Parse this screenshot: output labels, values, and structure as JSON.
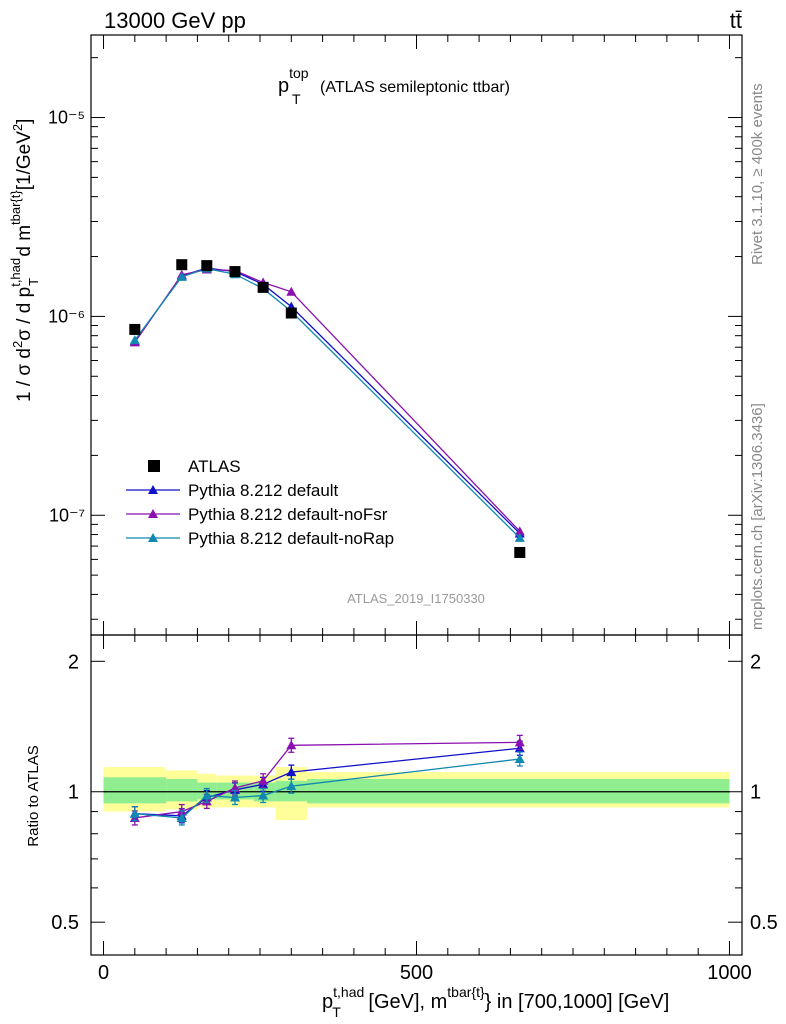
{
  "header": {
    "energy_label": "13000 GeV pp",
    "process_label": "tt̄",
    "title_main": "p",
    "title_sup": "top",
    "title_sub": "T",
    "title_rest": "(ATLAS semileptonic ttbar)",
    "analysis_id": "ATLAS_2019_I1750330"
  },
  "side": {
    "rivet": "Rivet 3.1.10, ≥ 400k events",
    "mcplots": "mcplots.cern.ch [arXiv:1306.3436]"
  },
  "axes": {
    "main_ylabel": "1 / σ d²σ / d p_T^{t,had} d m^{tbar{t}} [1/GeV²]",
    "ratio_ylabel": "Ratio to ATLAS",
    "xlabel": "p_T^{t,had} [GeV], m^{tbar{t}} in [700,1000] [GeV]",
    "main_ticks": [
      "10⁻⁵",
      "10⁻⁶",
      "10⁻⁷"
    ],
    "ratio_ticks_left": [
      "2",
      "1",
      "0.5"
    ],
    "ratio_ticks_right": [
      "2",
      "1",
      "0.5"
    ],
    "x_ticks": [
      "0",
      "500",
      "1000"
    ]
  },
  "colors": {
    "data": "#000000",
    "default": "#1010c8",
    "noFsr": "#8a10b0",
    "noRap": "#1088b0",
    "band_inner": "#90ee90",
    "band_outer": "#ffff99"
  },
  "chart_data": {
    "type": "scatter",
    "title": "p_T^top (ATLAS semileptonic ttbar)",
    "xlabel": "p_T^{t,had} [GeV], m^{tbar{t}} in [700,1000] [GeV]",
    "ylabel": "1 / σ d²σ / d p_T^{t,had} d m^{tbar{t}} [1/GeV²]",
    "xlim": [
      -20,
      1020
    ],
    "ylim": [
      2.5e-08,
      2.6e-05
    ],
    "ratio_ylim": [
      0.42,
      2.3
    ],
    "x": [
      50,
      125,
      165,
      210,
      255,
      300,
      665
    ],
    "x_bins": [
      [
        0,
        100
      ],
      [
        100,
        150
      ],
      [
        150,
        180
      ],
      [
        180,
        240
      ],
      [
        240,
        275
      ],
      [
        275,
        325
      ],
      [
        325,
        1000
      ]
    ],
    "series": [
      {
        "name": "ATLAS",
        "values": [
          8.6e-07,
          1.82e-06,
          1.8e-06,
          1.68e-06,
          1.4e-06,
          1.04e-06,
          6.5e-08
        ]
      },
      {
        "name": "Pythia 8.212 default",
        "values": [
          7.5e-07,
          1.6e-06,
          1.75e-06,
          1.68e-06,
          1.45e-06,
          1.12e-06,
          8.1e-08
        ]
      },
      {
        "name": "Pythia 8.212 default-noFsr",
        "values": [
          7.4e-07,
          1.62e-06,
          1.72e-06,
          1.7e-06,
          1.48e-06,
          1.33e-06,
          8.3e-08
        ]
      },
      {
        "name": "Pythia 8.212 default-noRap",
        "values": [
          7.6e-07,
          1.58e-06,
          1.74e-06,
          1.63e-06,
          1.38e-06,
          1.06e-06,
          7.7e-08
        ]
      }
    ],
    "ratio_series": [
      {
        "name": "Pythia 8.212 default",
        "values": [
          0.89,
          0.88,
          0.97,
          1.01,
          1.04,
          1.11,
          1.26
        ]
      },
      {
        "name": "Pythia 8.212 default-noFsr",
        "values": [
          0.87,
          0.9,
          0.95,
          1.02,
          1.06,
          1.28,
          1.3
        ]
      },
      {
        "name": "Pythia 8.212 default-noRap",
        "values": [
          0.89,
          0.87,
          0.98,
          0.97,
          0.98,
          1.03,
          1.19
        ]
      }
    ],
    "ratio_band_inner": [
      [
        0.94,
        1.08
      ],
      [
        0.95,
        1.07
      ],
      [
        0.96,
        1.05
      ],
      [
        0.96,
        1.05
      ],
      [
        0.95,
        1.05
      ],
      [
        0.95,
        1.06
      ],
      [
        0.94,
        1.07
      ]
    ],
    "ratio_band_outer": [
      [
        0.9,
        1.14
      ],
      [
        0.91,
        1.12
      ],
      [
        0.92,
        1.1
      ],
      [
        0.92,
        1.09
      ],
      [
        0.92,
        1.09
      ],
      [
        0.86,
        1.14
      ],
      [
        0.92,
        1.11
      ]
    ],
    "legend": [
      "ATLAS",
      "Pythia 8.212 default",
      "Pythia 8.212 default-noFsr",
      "Pythia 8.212 default-noRap"
    ],
    "legend_position": "lower-left"
  }
}
